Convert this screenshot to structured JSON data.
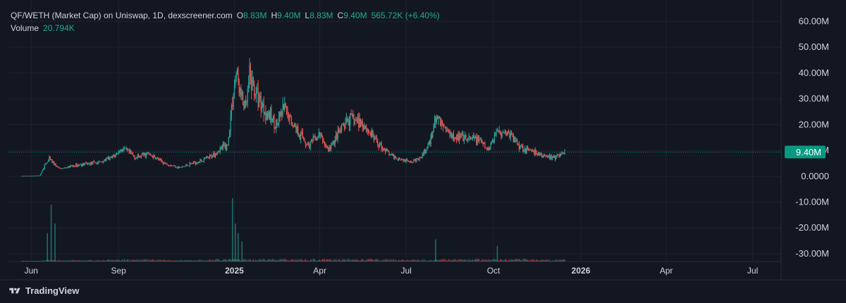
{
  "legend": {
    "symbol": "QF/WETH (Market Cap) on Uniswap, 1D, dexscreener.com",
    "open_label": "O",
    "open": "8.83M",
    "high_label": "H",
    "high": "9.40M",
    "low_label": "L",
    "low": "8.83M",
    "close_label": "C",
    "close": "9.40M",
    "change": "565.72K (+6.40%)",
    "volume_label": "Volume",
    "volume": "20.794K"
  },
  "branding": {
    "name": "TradingView",
    "icon": "tradingview-logo-icon"
  },
  "colors": {
    "background": "#131722",
    "grid": "#1e222d",
    "up": "#26a69a",
    "down": "#ef5350",
    "text": "#d1d4dc",
    "price_badge": "#089981"
  },
  "chart_data": {
    "type": "candlestick",
    "title": "QF/WETH (Market Cap) on Uniswap, 1D, dexscreener.com",
    "y_axis": {
      "range": [
        -33000000,
        65000000
      ],
      "ticks": [
        "60.00M",
        "50.00M",
        "40.00M",
        "30.00M",
        "20.00M",
        "10.00M",
        "0.0000",
        "-10.00M",
        "-20.00M",
        "-30.00M"
      ],
      "tick_values": [
        60000000,
        50000000,
        40000000,
        30000000,
        20000000,
        10000000,
        0,
        -10000000,
        -20000000,
        -30000000
      ]
    },
    "x_axis": {
      "range": [
        "2024-05-08",
        "2026-07-31"
      ],
      "ticks": [
        {
          "date": "2024-06-01",
          "label": "Jun",
          "bold": false
        },
        {
          "date": "2024-09-01",
          "label": "Sep",
          "bold": false
        },
        {
          "date": "2025-01-01",
          "label": "2025",
          "bold": true
        },
        {
          "date": "2025-04-01",
          "label": "Apr",
          "bold": false
        },
        {
          "date": "2025-07-01",
          "label": "Jul",
          "bold": false
        },
        {
          "date": "2025-10-01",
          "label": "Oct",
          "bold": false
        },
        {
          "date": "2026-01-01",
          "label": "2026",
          "bold": true
        },
        {
          "date": "2026-04-01",
          "label": "Apr",
          "bold": false
        },
        {
          "date": "2026-07-01",
          "label": "Jul",
          "bold": false
        }
      ]
    },
    "series_range": [
      "2024-05-22",
      "2025-12-15"
    ],
    "last_price": 9400000,
    "last_price_label": "9.40M",
    "grid": true,
    "close_path_M": [
      [
        "2024-05-22",
        0.1
      ],
      [
        "2024-06-10",
        0.3
      ],
      [
        "2024-06-15",
        4.2
      ],
      [
        "2024-06-20",
        6.5
      ],
      [
        "2024-07-01",
        2.8
      ],
      [
        "2024-07-20",
        4.4
      ],
      [
        "2024-08-10",
        5.3
      ],
      [
        "2024-08-25",
        7.2
      ],
      [
        "2024-09-05",
        10.7
      ],
      [
        "2024-09-20",
        7.2
      ],
      [
        "2024-10-01",
        8.8
      ],
      [
        "2024-10-20",
        5.0
      ],
      [
        "2024-11-05",
        3.3
      ],
      [
        "2024-11-20",
        5.3
      ],
      [
        "2024-12-05",
        7.0
      ],
      [
        "2024-12-18",
        10.8
      ],
      [
        "2024-12-25",
        12.0
      ],
      [
        "2024-12-30",
        30.0
      ],
      [
        "2025-01-03",
        40.0
      ],
      [
        "2025-01-08",
        31.0
      ],
      [
        "2025-01-13",
        26.0
      ],
      [
        "2025-01-17",
        38.0
      ],
      [
        "2025-01-24",
        32.0
      ],
      [
        "2025-02-05",
        24.0
      ],
      [
        "2025-02-15",
        20.0
      ],
      [
        "2025-02-22",
        26.0
      ],
      [
        "2025-03-01",
        22.0
      ],
      [
        "2025-03-10",
        17.0
      ],
      [
        "2025-03-20",
        12.0
      ],
      [
        "2025-04-01",
        16.0
      ],
      [
        "2025-04-10",
        10.0
      ],
      [
        "2025-04-20",
        16.0
      ],
      [
        "2025-05-01",
        22.0
      ],
      [
        "2025-05-15",
        21.0
      ],
      [
        "2025-06-01",
        13.0
      ],
      [
        "2025-06-15",
        8.0
      ],
      [
        "2025-07-01",
        6.0
      ],
      [
        "2025-07-15",
        6.5
      ],
      [
        "2025-07-25",
        12.0
      ],
      [
        "2025-08-01",
        23.0
      ],
      [
        "2025-08-15",
        17.0
      ],
      [
        "2025-09-01",
        14.0
      ],
      [
        "2025-09-15",
        14.5
      ],
      [
        "2025-09-25",
        10.0
      ],
      [
        "2025-10-05",
        18.0
      ],
      [
        "2025-10-15",
        17.0
      ],
      [
        "2025-11-01",
        11.0
      ],
      [
        "2025-11-20",
        8.0
      ],
      [
        "2025-12-05",
        7.5
      ],
      [
        "2025-12-15",
        9.4
      ]
    ],
    "volume_spikes": [
      {
        "date": "2024-06-22",
        "value": 0.9
      },
      {
        "date": "2024-06-26",
        "value": 0.6
      },
      {
        "date": "2024-06-18",
        "value": 0.45
      },
      {
        "date": "2024-12-30",
        "value": 1.0
      },
      {
        "date": "2025-01-02",
        "value": 0.6
      },
      {
        "date": "2025-01-05",
        "value": 0.45
      },
      {
        "date": "2025-01-09",
        "value": 0.32
      },
      {
        "date": "2025-08-01",
        "value": 0.35
      },
      {
        "date": "2025-10-05",
        "value": 0.25
      }
    ]
  }
}
